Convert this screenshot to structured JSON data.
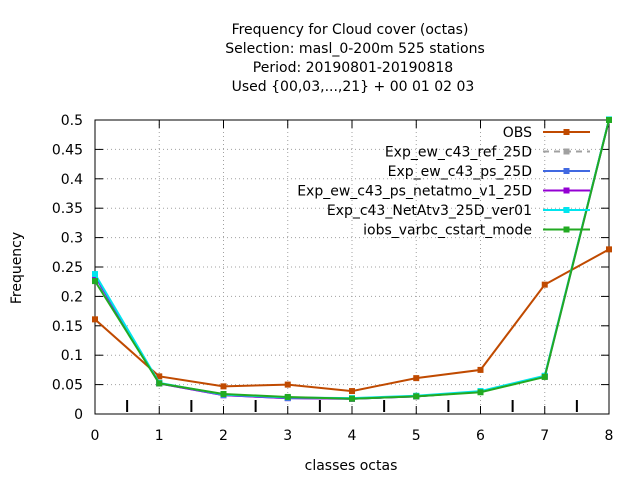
{
  "chart_data": {
    "type": "line",
    "title_lines": [
      "Frequency  for Cloud cover (octas)",
      "Selection: masl_0-200m    525 stations",
      "Period: 20190801-20190818",
      "Used {00,03,...,21} + 00 01 02 03"
    ],
    "xlabel": "classes octas",
    "ylabel": "Frequency",
    "x": [
      0,
      1,
      2,
      3,
      4,
      5,
      6,
      7,
      8
    ],
    "xlim": [
      0,
      8
    ],
    "ylim": [
      0,
      0.5
    ],
    "x_ticks": [
      "0",
      "1",
      "2",
      "3",
      "4",
      "5",
      "6",
      "7",
      "8"
    ],
    "y_ticks": [
      "0",
      "0.05",
      "0.1",
      "0.15",
      "0.2",
      "0.25",
      "0.3",
      "0.35",
      "0.4",
      "0.45",
      "0.5"
    ],
    "grid": true,
    "legend_position": "top-right",
    "series": [
      {
        "name": "OBS",
        "color": "#c04a00",
        "dashed": false,
        "values": [
          0.161,
          0.064,
          0.047,
          0.05,
          0.039,
          0.061,
          0.075,
          0.22,
          0.28
        ]
      },
      {
        "name": "Exp_ew_c43_ref_25D",
        "color": "#a0a0a0",
        "dashed": true,
        "values": [
          0.232,
          0.052,
          0.033,
          0.028,
          0.026,
          0.03,
          0.038,
          0.064,
          0.5
        ]
      },
      {
        "name": "Exp_ew_c43_ps_25D",
        "color": "#4169e1",
        "dashed": false,
        "values": [
          0.234,
          0.052,
          0.032,
          0.027,
          0.026,
          0.03,
          0.038,
          0.064,
          0.5
        ]
      },
      {
        "name": "Exp_ew_c43_ps_netatmo_v1_25D",
        "color": "#9400d3",
        "dashed": false,
        "values": [
          0.236,
          0.052,
          0.032,
          0.027,
          0.026,
          0.03,
          0.038,
          0.064,
          0.5
        ]
      },
      {
        "name": "Exp_c43_NetAtv3_25D_ver01",
        "color": "#00e5ee",
        "dashed": false,
        "values": [
          0.238,
          0.053,
          0.033,
          0.028,
          0.027,
          0.031,
          0.039,
          0.065,
          0.501
        ]
      },
      {
        "name": "iobs_varbc_cstart_mode",
        "color": "#22aa22",
        "dashed": false,
        "values": [
          0.226,
          0.052,
          0.034,
          0.029,
          0.026,
          0.03,
          0.037,
          0.063,
          0.5
        ]
      }
    ]
  }
}
